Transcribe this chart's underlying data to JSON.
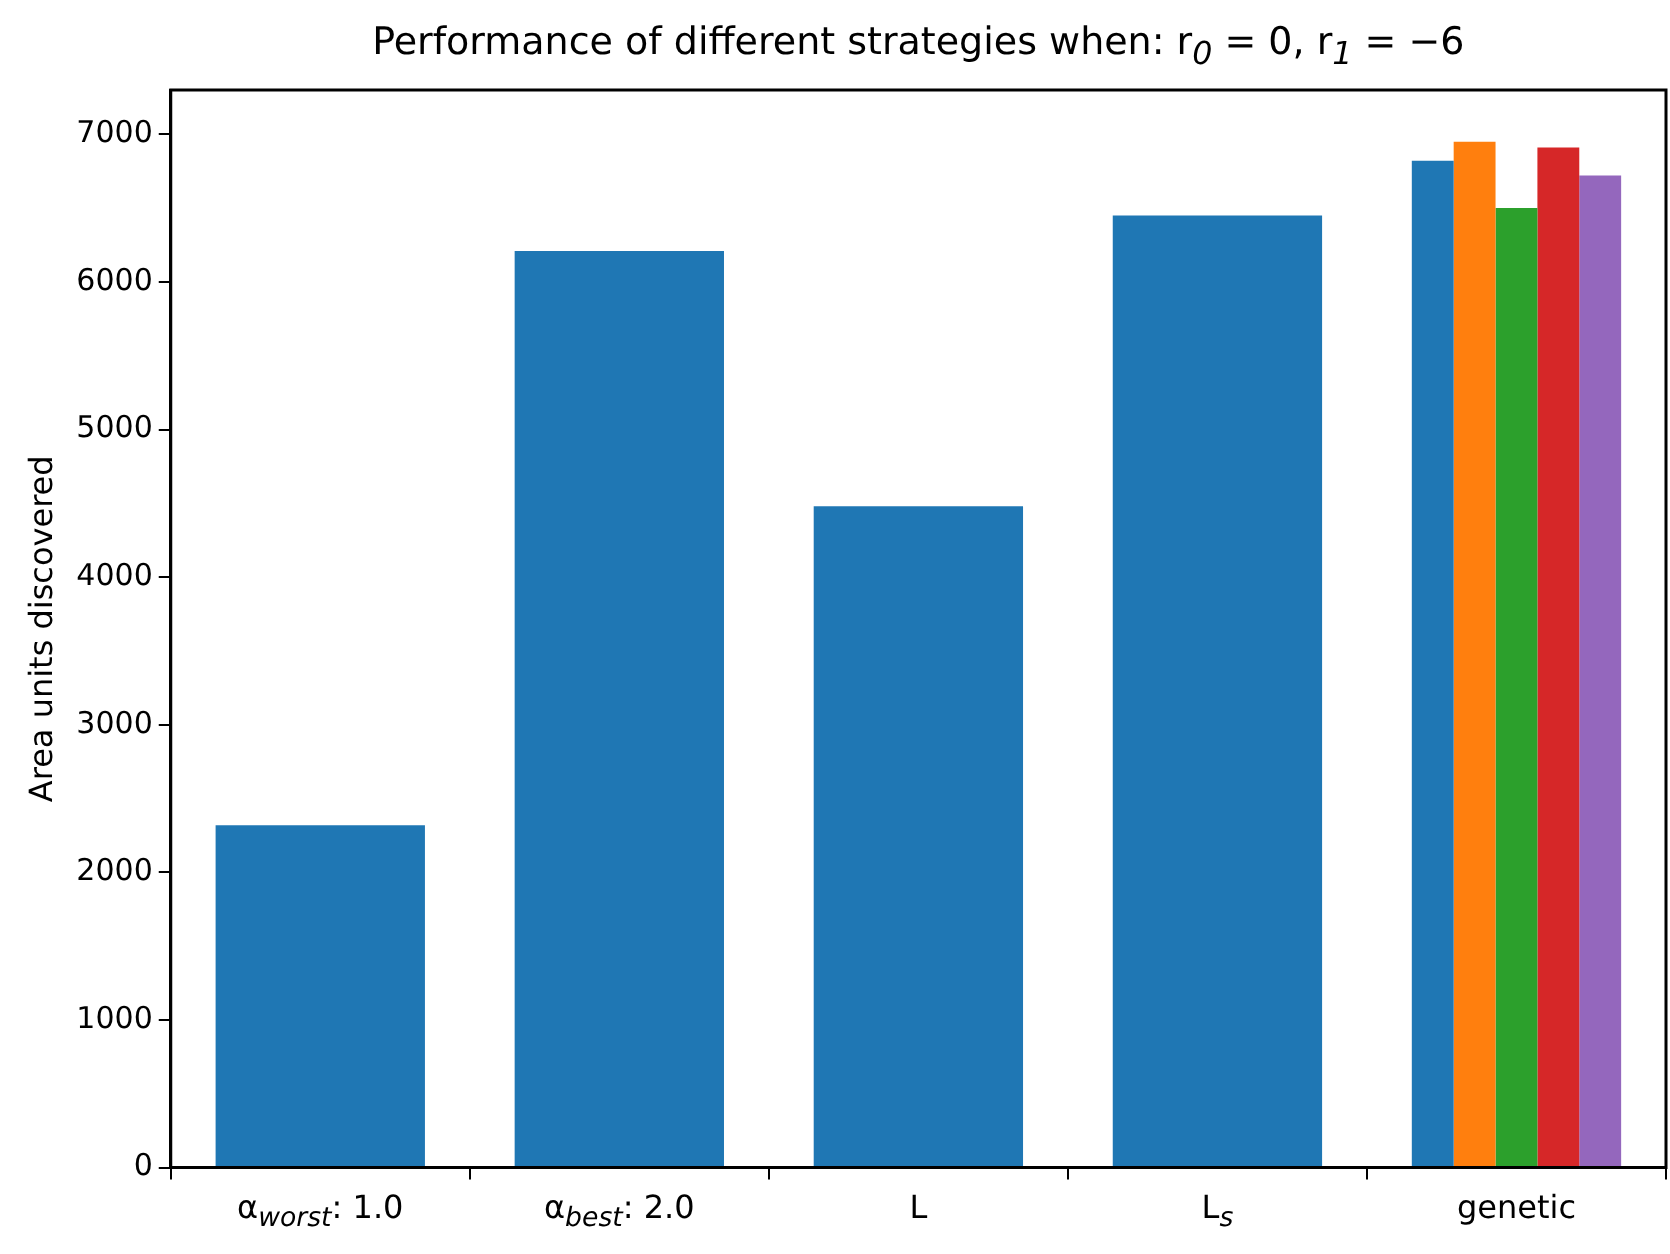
{
  "chart_data": {
    "type": "bar",
    "title": "Performance of different strategies when: r$_{0}$ = 0, r$_{1}$ = −6",
    "ylabel": "Area units discovered",
    "categories": [
      "α$_{worst}$: 1.0",
      "α$_{best}$: 2.0",
      "L",
      "L$_{s}$",
      "genetic"
    ],
    "ylim": [
      0,
      7300
    ],
    "yticks": [
      0,
      1000,
      2000,
      3000,
      4000,
      5000,
      6000,
      7000
    ],
    "series": [
      {
        "color": "#1f77b4",
        "values": [
          2320,
          6210,
          4480,
          6450,
          6820
        ]
      },
      {
        "color": "#ff7f0e",
        "values": [
          null,
          null,
          null,
          null,
          6950
        ]
      },
      {
        "color": "#2ca02c",
        "values": [
          null,
          null,
          null,
          null,
          6500
        ]
      },
      {
        "color": "#d62728",
        "values": [
          null,
          null,
          null,
          null,
          6910
        ]
      },
      {
        "color": "#9467bd",
        "values": [
          null,
          null,
          null,
          null,
          6720
        ]
      }
    ]
  }
}
